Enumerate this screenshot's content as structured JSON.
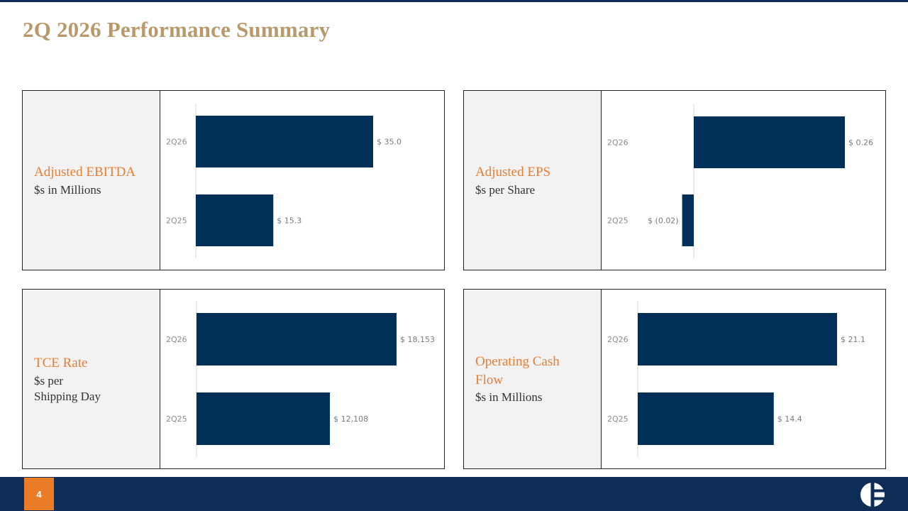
{
  "title": "2Q 2026 Performance Summary",
  "page_number": "4",
  "colors": {
    "bar": "#003057",
    "accent": "#e67e33",
    "title": "#b8996b",
    "footer": "#0d2d56"
  },
  "panels": [
    {
      "metric": "Adjusted EBITDA",
      "subtitle": "$s in Millions"
    },
    {
      "metric": "Adjusted EPS",
      "subtitle": "$s per Share"
    },
    {
      "metric": "TCE Rate",
      "subtitle": "$s per\nShipping Day"
    },
    {
      "metric": "Operating Cash\nFlow",
      "subtitle": "$s in Millions"
    }
  ],
  "chart_data": [
    {
      "type": "bar",
      "orientation": "horizontal",
      "categories": [
        "2Q26",
        "2Q25"
      ],
      "values": [
        35.0,
        15.3
      ],
      "labels": [
        "$ 35.0",
        "$ 15.3"
      ]
    },
    {
      "type": "bar",
      "orientation": "horizontal",
      "categories": [
        "2Q26",
        "2Q25"
      ],
      "values": [
        0.26,
        -0.02
      ],
      "labels": [
        "$ 0.26",
        "$ (0.02)"
      ]
    },
    {
      "type": "bar",
      "orientation": "horizontal",
      "categories": [
        "2Q26",
        "2Q25"
      ],
      "values": [
        18153,
        12108
      ],
      "labels": [
        "$ 18,153",
        "$ 12,108"
      ]
    },
    {
      "type": "bar",
      "orientation": "horizontal",
      "categories": [
        "2Q26",
        "2Q25"
      ],
      "values": [
        21.1,
        14.4
      ],
      "labels": [
        "$ 21.1",
        "$ 14.4"
      ]
    }
  ]
}
